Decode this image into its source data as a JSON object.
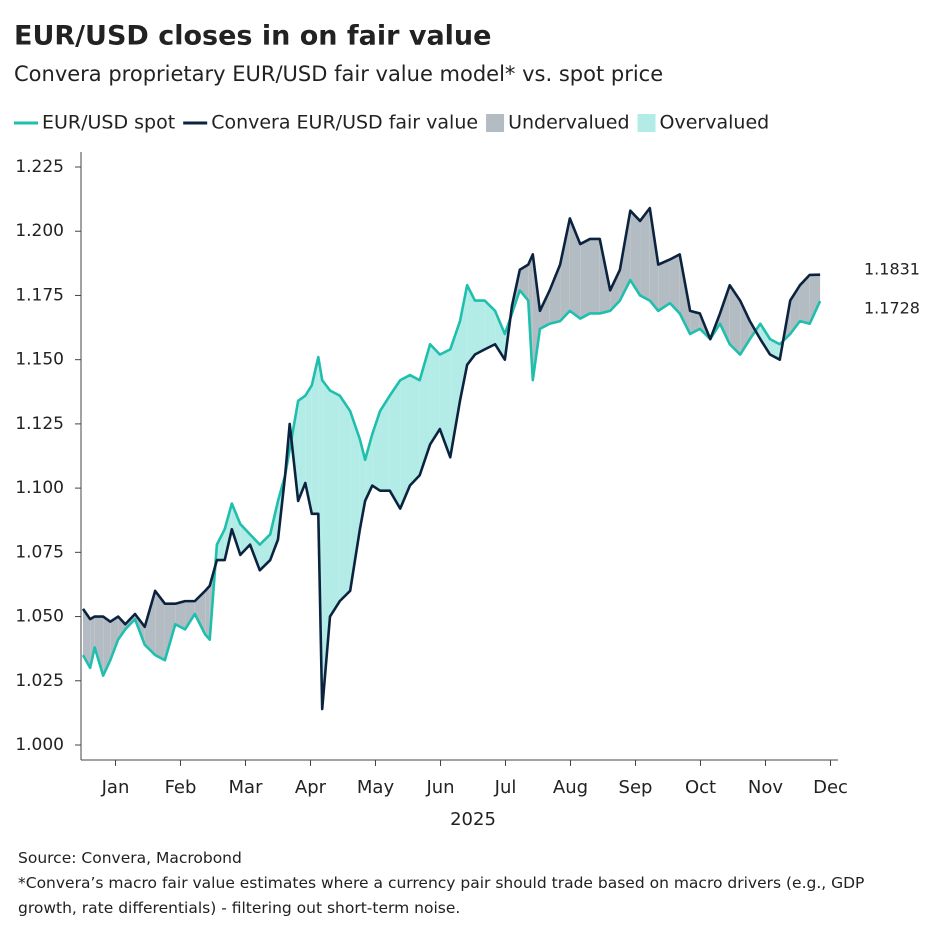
{
  "chart_data": {
    "type": "line",
    "title": "EUR/USD closes in on fair value",
    "subtitle": "Convera proprietary EUR/USD fair value model* vs. spot price",
    "x_label": "2025",
    "source": "Source: Convera, Macrobond",
    "footnote": "*Convera’s macro fair value estimates where a currency pair should trade based on macro drivers (e.g., GDP growth, rate differentials) - filtering out short-term noise.",
    "x": [
      0,
      0.11,
      0.18,
      0.31,
      0.42,
      0.54,
      0.65,
      0.8,
      0.95,
      1.11,
      1.26,
      1.42,
      1.57,
      1.72,
      1.88,
      1.95,
      2.06,
      2.18,
      2.29,
      2.42,
      2.57,
      2.72,
      2.88,
      3.0,
      3.11,
      3.18,
      3.31,
      3.42,
      3.52,
      3.62,
      3.68,
      3.8,
      3.95,
      4.11,
      4.26,
      4.34,
      4.45,
      4.57,
      4.72,
      4.88,
      5.03,
      5.18,
      5.34,
      5.49,
      5.65,
      5.8,
      5.91,
      6.03,
      6.18,
      6.34,
      6.49,
      6.6,
      6.72,
      6.85,
      6.92,
      7.03,
      7.18,
      7.34,
      7.49,
      7.65,
      7.8,
      7.95,
      8.11,
      8.26,
      8.42,
      8.57,
      8.72,
      8.85,
      9.03,
      9.18,
      9.34,
      9.49,
      9.65,
      9.8,
      9.95,
      10.11,
      10.26,
      10.42,
      10.57,
      10.72,
      10.88,
      11.03,
      11.18,
      11.34
    ],
    "series": [
      {
        "name": "EUR/USD spot",
        "color": "#1fbfae",
        "values": [
          1.035,
          1.03,
          1.038,
          1.027,
          1.033,
          1.041,
          1.045,
          1.049,
          1.039,
          1.035,
          1.033,
          1.047,
          1.045,
          1.051,
          1.043,
          1.041,
          1.078,
          1.084,
          1.094,
          1.086,
          1.082,
          1.078,
          1.082,
          1.095,
          1.105,
          1.115,
          1.134,
          1.136,
          1.14,
          1.151,
          1.142,
          1.138,
          1.136,
          1.13,
          1.119,
          1.111,
          1.121,
          1.13,
          1.136,
          1.142,
          1.144,
          1.142,
          1.156,
          1.152,
          1.154,
          1.165,
          1.179,
          1.173,
          1.173,
          1.169,
          1.16,
          1.168,
          1.177,
          1.173,
          1.142,
          1.162,
          1.164,
          1.165,
          1.169,
          1.166,
          1.168,
          1.168,
          1.169,
          1.173,
          1.181,
          1.175,
          1.173,
          1.169,
          1.172,
          1.168,
          1.16,
          1.162,
          1.158,
          1.164,
          1.156,
          1.152,
          1.158,
          1.164,
          1.158,
          1.156,
          1.16,
          1.165,
          1.164,
          1.1728
        ]
      },
      {
        "name": "Convera EUR/USD fair value",
        "color": "#0c2340",
        "values": [
          1.053,
          1.049,
          1.05,
          1.05,
          1.048,
          1.05,
          1.047,
          1.051,
          1.046,
          1.06,
          1.055,
          1.055,
          1.056,
          1.056,
          1.06,
          1.062,
          1.072,
          1.072,
          1.084,
          1.074,
          1.078,
          1.068,
          1.072,
          1.08,
          1.105,
          1.125,
          1.095,
          1.102,
          1.09,
          1.09,
          1.014,
          1.05,
          1.056,
          1.06,
          1.084,
          1.095,
          1.101,
          1.099,
          1.099,
          1.092,
          1.101,
          1.105,
          1.117,
          1.123,
          1.112,
          1.134,
          1.148,
          1.152,
          1.154,
          1.156,
          1.15,
          1.171,
          1.185,
          1.187,
          1.191,
          1.169,
          1.177,
          1.187,
          1.205,
          1.195,
          1.197,
          1.197,
          1.177,
          1.185,
          1.208,
          1.204,
          1.209,
          1.187,
          1.189,
          1.191,
          1.169,
          1.168,
          1.158,
          1.168,
          1.179,
          1.173,
          1.165,
          1.158,
          1.152,
          1.15,
          1.173,
          1.179,
          1.183,
          1.1831
        ]
      }
    ],
    "fills": [
      {
        "name": "Undervalued",
        "color": "#b4bcc3"
      },
      {
        "name": "Overvalued",
        "color": "#b3ece6"
      }
    ],
    "xlim": [
      0,
      11.6
    ],
    "xticks": [
      {
        "value": 0.5,
        "label": "Jan"
      },
      {
        "value": 1.5,
        "label": "Feb"
      },
      {
        "value": 2.5,
        "label": "Mar"
      },
      {
        "value": 3.5,
        "label": "Apr"
      },
      {
        "value": 4.5,
        "label": "May"
      },
      {
        "value": 5.5,
        "label": "Jun"
      },
      {
        "value": 6.5,
        "label": "Jul"
      },
      {
        "value": 7.5,
        "label": "Aug"
      },
      {
        "value": 8.5,
        "label": "Sep"
      },
      {
        "value": 9.5,
        "label": "Oct"
      },
      {
        "value": 10.5,
        "label": "Nov"
      },
      {
        "value": 11.5,
        "label": "Dec"
      }
    ],
    "ylim": [
      0.994,
      1.231
    ],
    "yticks": [
      {
        "value": 1,
        "label": "1.000"
      },
      1.025,
      {
        "value": 1.05,
        "label": "1.050"
      },
      1.075,
      {
        "value": 1.1,
        "label": "1.100"
      },
      1.125,
      {
        "value": 1.15,
        "label": "1.150"
      },
      1.175,
      {
        "value": 1.2,
        "label": "1.200"
      },
      1.225
    ],
    "grid": false
  }
}
